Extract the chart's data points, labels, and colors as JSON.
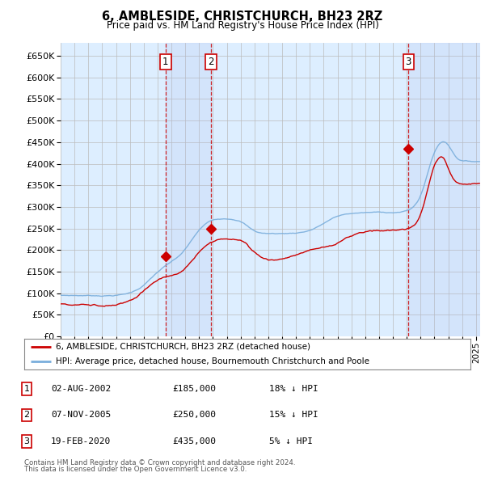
{
  "title": "6, AMBLESIDE, CHRISTCHURCH, BH23 2RZ",
  "subtitle": "Price paid vs. HM Land Registry's House Price Index (HPI)",
  "ylim": [
    0,
    680000
  ],
  "yticks": [
    0,
    50000,
    100000,
    150000,
    200000,
    250000,
    300000,
    350000,
    400000,
    450000,
    500000,
    550000,
    600000,
    650000
  ],
  "xlim_start": 1995.0,
  "xlim_end": 2025.3,
  "transactions": [
    {
      "label": "1",
      "date_num": 2002.58,
      "price": 185000
    },
    {
      "label": "2",
      "date_num": 2005.85,
      "price": 250000
    },
    {
      "label": "3",
      "date_num": 2020.12,
      "price": 435000
    }
  ],
  "transaction_annotations": [
    {
      "label": "1",
      "date": "02-AUG-2002",
      "price": "£185,000",
      "pct": "18% ↓ HPI"
    },
    {
      "label": "2",
      "date": "07-NOV-2005",
      "price": "£250,000",
      "pct": "15% ↓ HPI"
    },
    {
      "label": "3",
      "date": "19-FEB-2020",
      "price": "£435,000",
      "pct": "5% ↓ HPI"
    }
  ],
  "legend_house": "6, AMBLESIDE, CHRISTCHURCH, BH23 2RZ (detached house)",
  "legend_hpi": "HPI: Average price, detached house, Bournemouth Christchurch and Poole",
  "footer1": "Contains HM Land Registry data © Crown copyright and database right 2024.",
  "footer2": "This data is licensed under the Open Government Licence v3.0.",
  "house_color": "#cc0000",
  "hpi_color": "#7aaedc",
  "bg_color": "#ddeeff",
  "grid_color": "#bbbbbb",
  "vline_color": "#cc0000",
  "box_color": "#cc0000"
}
